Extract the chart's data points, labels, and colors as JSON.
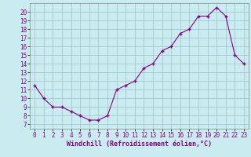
{
  "x": [
    0,
    1,
    2,
    3,
    4,
    5,
    6,
    7,
    8,
    9,
    10,
    11,
    12,
    13,
    14,
    15,
    16,
    17,
    18,
    19,
    20,
    21,
    22,
    23
  ],
  "y": [
    11.5,
    10.0,
    9.0,
    9.0,
    8.5,
    8.0,
    7.5,
    7.5,
    8.0,
    11.0,
    11.5,
    12.0,
    13.5,
    14.0,
    15.5,
    16.0,
    17.5,
    18.0,
    19.5,
    19.5,
    20.5,
    19.5,
    15.0,
    14.0
  ],
  "line_color": "#880088",
  "marker_color": "#880088",
  "bg_color": "#C8ECF0",
  "grid_color": "#A0C0C8",
  "xlabel": "Windchill (Refroidissement éolien,°C)",
  "xlim": [
    -0.5,
    23.5
  ],
  "ylim": [
    6.5,
    21.0
  ],
  "yticks": [
    7,
    8,
    9,
    10,
    11,
    12,
    13,
    14,
    15,
    16,
    17,
    18,
    19,
    20
  ],
  "xticks": [
    0,
    1,
    2,
    3,
    4,
    5,
    6,
    7,
    8,
    9,
    10,
    11,
    12,
    13,
    14,
    15,
    16,
    17,
    18,
    19,
    20,
    21,
    22,
    23
  ],
  "tick_fontsize": 5.5,
  "label_fontsize": 6.0
}
